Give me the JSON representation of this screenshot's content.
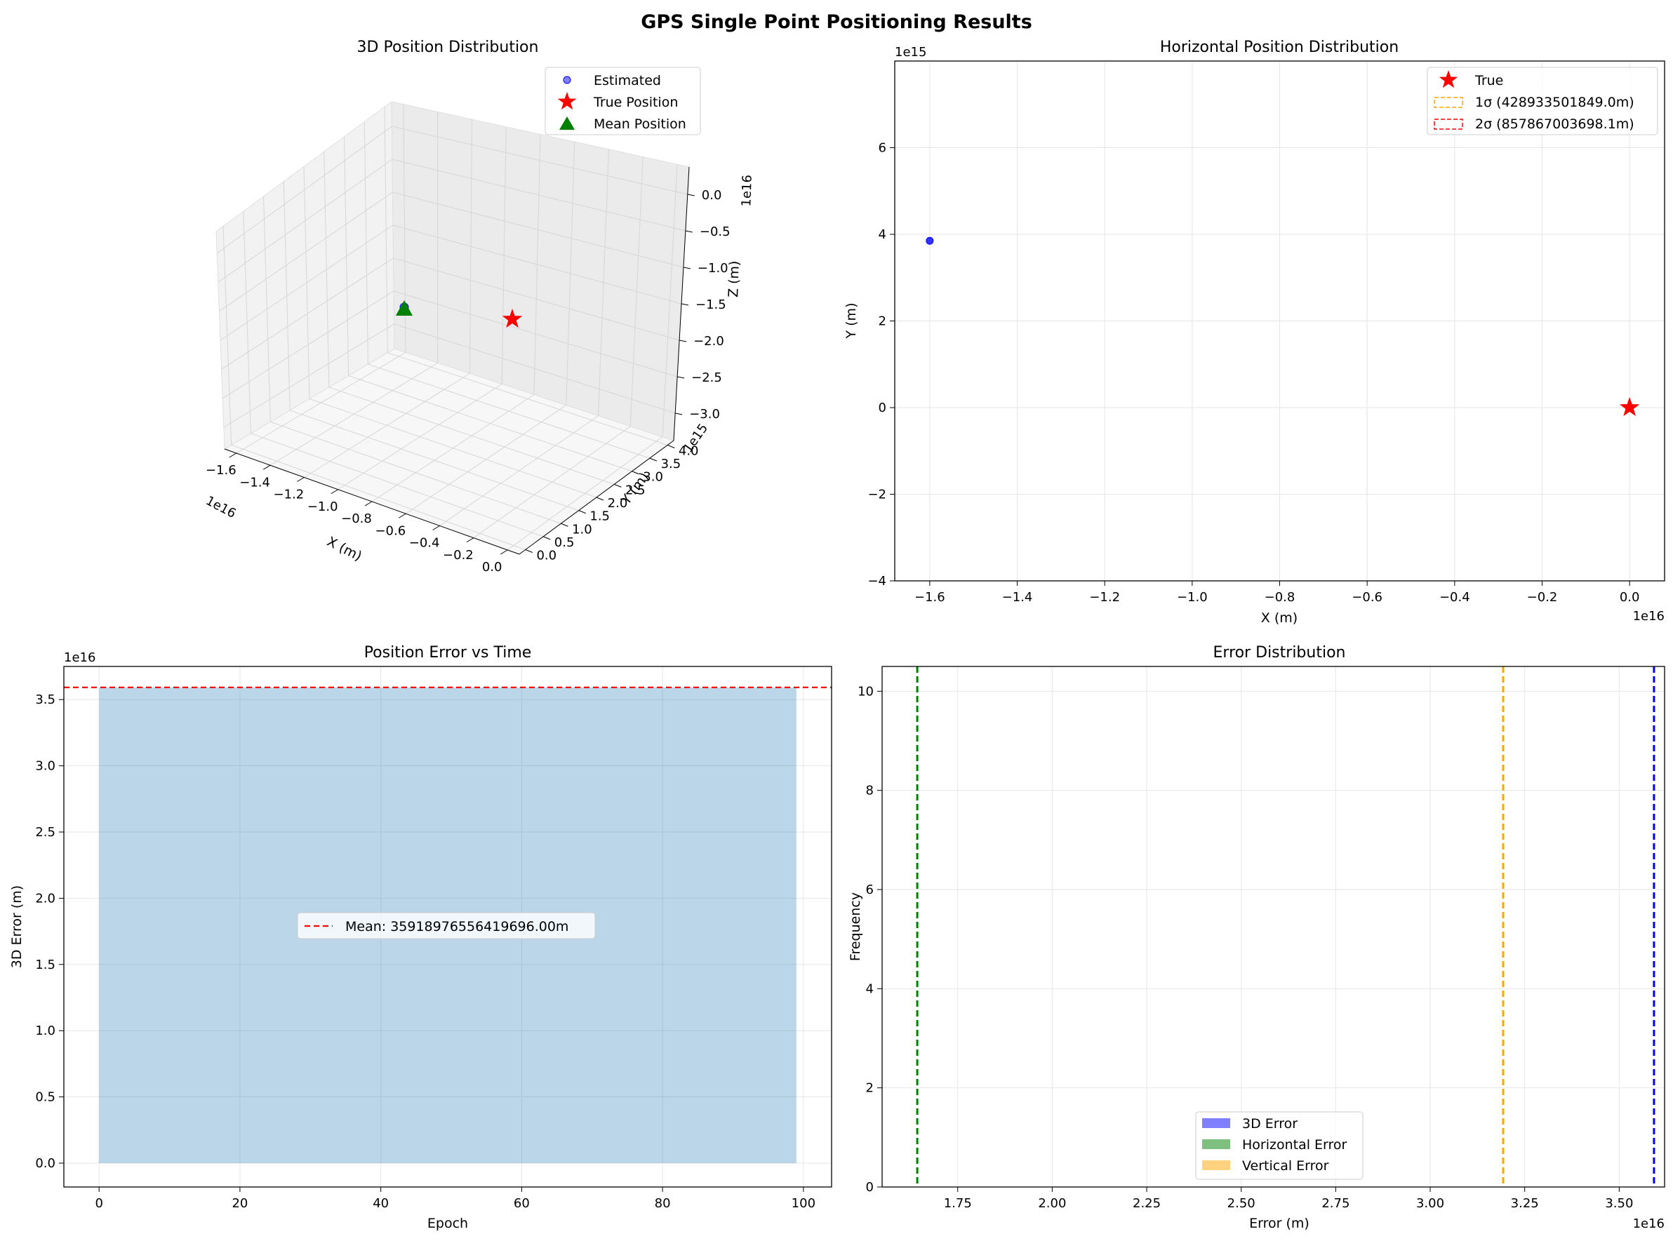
{
  "figure": {
    "suptitle": "GPS Single Point Positioning Results"
  },
  "chart_data": [
    {
      "type": "scatter3d",
      "title": "3D Position Distribution",
      "xlabel": "X (m)",
      "ylabel": "Y (m)",
      "zlabel": "Z (m)",
      "x_offset_label": "1e16",
      "y_offset_label": "1e15",
      "z_offset_label": "1e16",
      "x_ticks": [
        "−1.6",
        "−1.4",
        "−1.2",
        "−1.0",
        "−0.8",
        "−0.6",
        "−0.4",
        "−0.2",
        "0.0"
      ],
      "y_ticks": [
        "0.0",
        "0.5",
        "1.0",
        "1.5",
        "2.0",
        "2.5",
        "3.0",
        "3.5",
        "4.0"
      ],
      "z_ticks": [
        "0.0",
        "−0.5",
        "−1.0",
        "−1.5",
        "−2.0",
        "−2.5",
        "−3.0"
      ],
      "legend": [
        "Estimated",
        "True Position",
        "Mean Position"
      ],
      "legend_loc": "upper right",
      "series": [
        {
          "name": "Estimated",
          "marker": "circle",
          "color": "#0000ff",
          "points": [
            [
              -1.6e+16,
              3850000000000000.0,
              -2e+16
            ]
          ]
        },
        {
          "name": "True Position",
          "marker": "star",
          "color": "#ff0000",
          "points": [
            [
              0,
              0,
              0
            ]
          ]
        },
        {
          "name": "Mean Position",
          "marker": "triangle",
          "color": "#008000",
          "points": [
            [
              -1.6e+16,
              3850000000000000.0,
              -2e+16
            ]
          ]
        }
      ]
    },
    {
      "type": "scatter",
      "title": "Horizontal Position Distribution",
      "xlabel": "X (m)",
      "ylabel": "Y (m)",
      "x_offset_label": "1e16",
      "y_offset_label": "1e15",
      "xlim": [
        -1.68,
        0.08
      ],
      "ylim": [
        -4,
        8
      ],
      "x_ticks": [
        -1.6,
        -1.4,
        -1.2,
        -1.0,
        -0.8,
        -0.6,
        -0.4,
        -0.2,
        0.0
      ],
      "y_ticks": [
        -4,
        -2,
        0,
        2,
        4,
        6
      ],
      "grid": true,
      "legend_loc": "upper right",
      "legend": [
        {
          "label": "True",
          "kind": "star",
          "color": "#ff0000"
        },
        {
          "label": "1σ (428933501849.0m)",
          "kind": "dashed-box",
          "color": "#ffa500"
        },
        {
          "label": "2σ (857867003698.1m)",
          "kind": "dashed-box",
          "color": "#ff0000"
        }
      ],
      "series": [
        {
          "name": "Estimated",
          "color": "#0000ff",
          "points": [
            [
              -1.6,
              3.85
            ]
          ]
        },
        {
          "name": "True",
          "color": "#ff0000",
          "points": [
            [
              0.0,
              0.0
            ]
          ]
        }
      ]
    },
    {
      "type": "area",
      "title": "Position Error vs Time",
      "xlabel": "Epoch",
      "ylabel": "3D Error (m)",
      "y_offset_label": "1e16",
      "xlim": [
        -5,
        104
      ],
      "ylim": [
        -0.18,
        3.75
      ],
      "x_ticks": [
        0,
        20,
        40,
        60,
        80,
        100
      ],
      "y_ticks": [
        0.0,
        0.5,
        1.0,
        1.5,
        2.0,
        2.5,
        3.0,
        3.5
      ],
      "grid": true,
      "legend_loc": "center",
      "series": [
        {
          "name": "3D Error",
          "color": "#1f77b4",
          "x": [
            0,
            99
          ],
          "values": [
            3.59189765564197,
            3.59189765564197
          ]
        }
      ],
      "mean_line": {
        "label": "Mean: 35918976556419696.00m",
        "value": 3.59189765564197,
        "color": "#ff0000"
      }
    },
    {
      "type": "histogram",
      "title": "Error Distribution",
      "xlabel": "Error (m)",
      "ylabel": "Frequency",
      "x_offset_label": "1e16",
      "xlim": [
        1.55,
        3.62
      ],
      "ylim": [
        0,
        10.5
      ],
      "x_ticks": [
        1.75,
        2.0,
        2.25,
        2.5,
        2.75,
        3.0,
        3.25,
        3.5
      ],
      "y_ticks": [
        0,
        2,
        4,
        6,
        8,
        10
      ],
      "grid": true,
      "legend_loc": "lower center",
      "series": [
        {
          "name": "3D Error",
          "color": "#0000ff",
          "mean": 3.592
        },
        {
          "name": "Horizontal Error",
          "color": "#008000",
          "mean": 1.643
        },
        {
          "name": "Vertical Error",
          "color": "#ffa500",
          "mean": 3.193
        }
      ]
    }
  ]
}
